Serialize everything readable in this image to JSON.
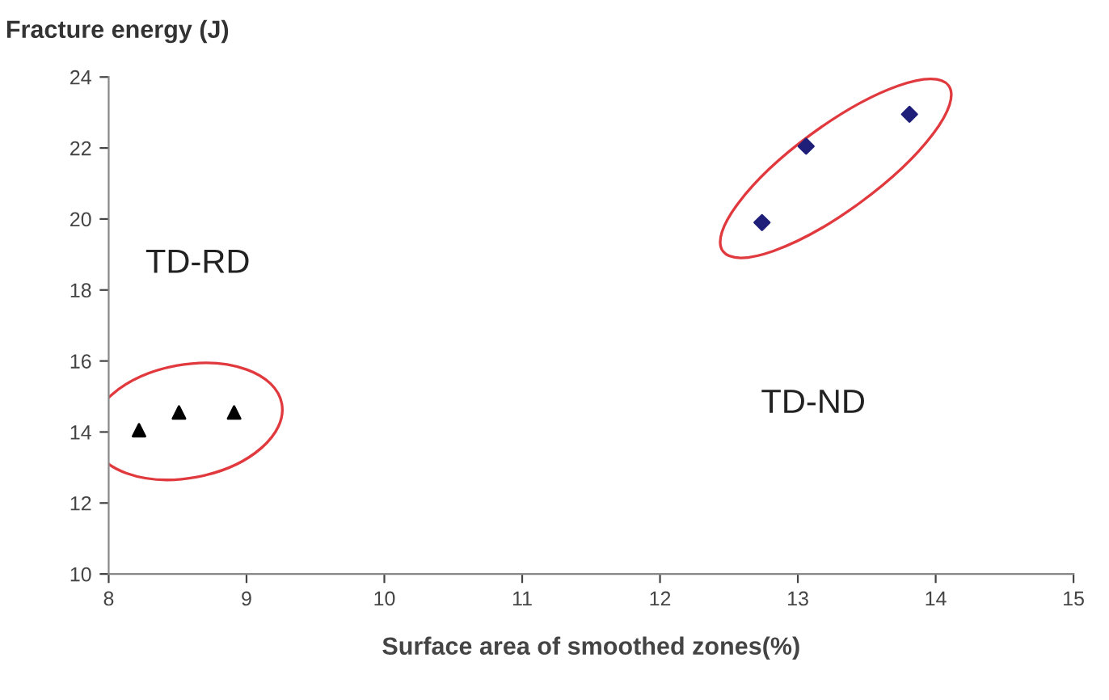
{
  "chart_data": {
    "type": "scatter",
    "ylabel": "Fracture energy (J)",
    "xlabel": "Surface area of smoothed zones(%)",
    "series": [
      {
        "color": "#000000",
        "marker": "triangle",
        "x": [
          8.22,
          8.51,
          8.91
        ],
        "values": [
          14.05,
          14.55,
          14.55
        ]
      },
      {
        "color": "#1f1f7a",
        "marker": "diamond",
        "x": [
          12.74,
          13.06,
          13.81
        ],
        "values": [
          19.9,
          22.05,
          22.95
        ]
      }
    ],
    "annotations": [
      "TD-RD",
      "TD-ND"
    ],
    "xlim": [
      8,
      15
    ],
    "xticks": [
      8,
      9,
      10,
      11,
      12,
      13,
      14,
      15
    ],
    "ylim": [
      10,
      24
    ],
    "yticks": [
      10,
      12,
      14,
      16,
      18,
      20,
      22,
      24
    ],
    "grid": false,
    "legend": false
  }
}
